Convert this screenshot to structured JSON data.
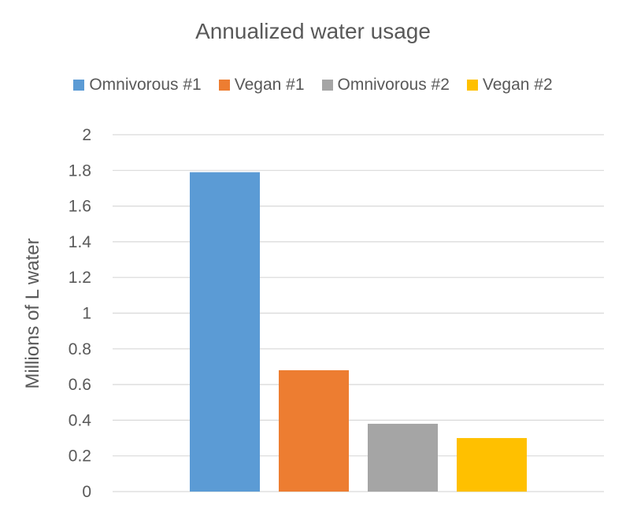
{
  "chart_data": {
    "type": "bar",
    "title": "Annualized water usage",
    "ylabel": "Millions of L water",
    "xlabel": "",
    "categories": [
      ""
    ],
    "series": [
      {
        "name": "Omnivorous #1",
        "values": [
          1.79
        ],
        "color": "#5B9BD5"
      },
      {
        "name": "Vegan #1",
        "values": [
          0.68
        ],
        "color": "#ED7D31"
      },
      {
        "name": "Omnivorous #2",
        "values": [
          0.38
        ],
        "color": "#A5A5A5"
      },
      {
        "name": "Vegan #2",
        "values": [
          0.3
        ],
        "color": "#FFC000"
      }
    ],
    "ylim": [
      0,
      2
    ],
    "yticks": [
      "0",
      "0.2",
      "0.4",
      "0.6",
      "0.8",
      "1",
      "1.2",
      "1.4",
      "1.6",
      "1.8",
      "2"
    ],
    "grid": true,
    "legend_position": "top"
  }
}
